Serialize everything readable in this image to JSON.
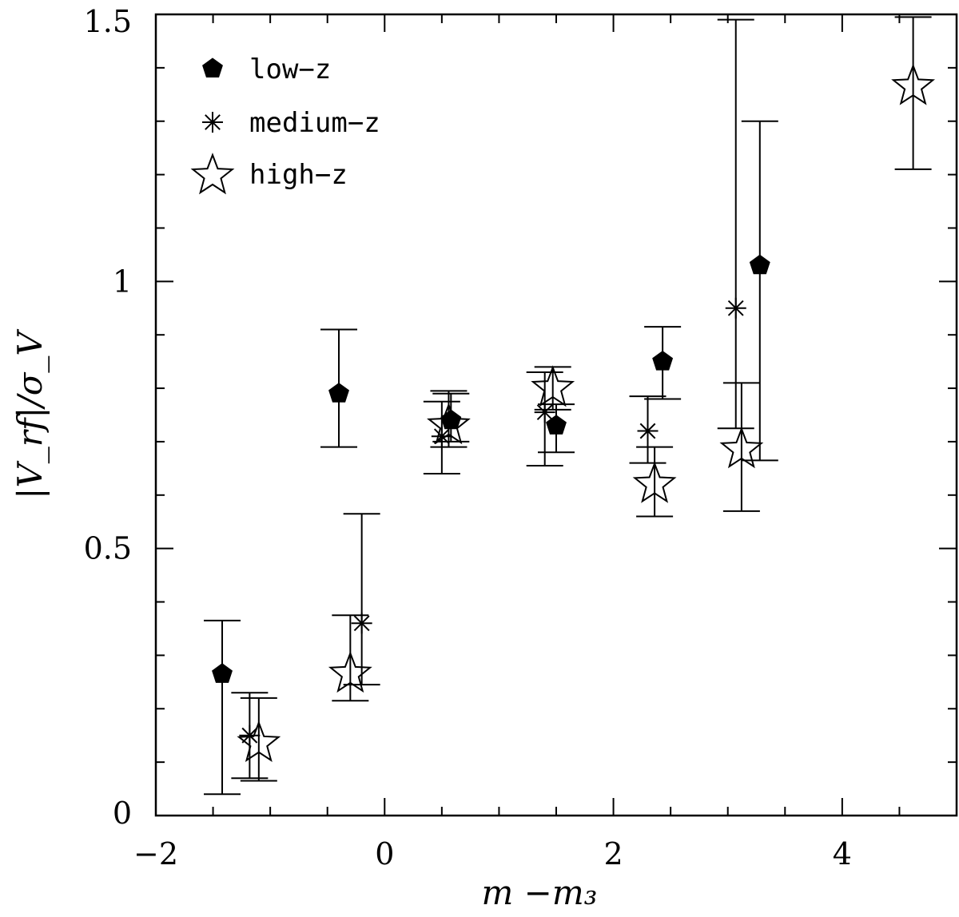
{
  "chart_data": {
    "type": "scatter",
    "xlabel": "m −m₃",
    "ylabel": "|V_rf|/σ_V",
    "xlim": [
      -2,
      5
    ],
    "ylim": [
      0,
      1.5
    ],
    "x_ticks": [
      -2,
      0,
      2,
      4
    ],
    "x_tick_labels": [
      "−2",
      "0",
      "2",
      "4"
    ],
    "y_ticks": [
      0,
      0.5,
      1,
      1.5
    ],
    "y_tick_labels": [
      "0",
      "0.5",
      "1",
      "1.5"
    ],
    "legend_position": "top-left",
    "series": [
      {
        "name": "low−z",
        "marker": "pentagon-filled",
        "points": [
          {
            "x": -1.42,
            "y": 0.265,
            "ylo": 0.04,
            "yhi": 0.365
          },
          {
            "x": -0.4,
            "y": 0.79,
            "ylo": 0.69,
            "yhi": 0.91
          },
          {
            "x": 0.58,
            "y": 0.74,
            "ylo": 0.7,
            "yhi": 0.79
          },
          {
            "x": 1.5,
            "y": 0.73,
            "ylo": 0.68,
            "yhi": 0.77
          },
          {
            "x": 2.43,
            "y": 0.85,
            "ylo": 0.78,
            "yhi": 0.915
          },
          {
            "x": 3.28,
            "y": 1.03,
            "ylo": 0.665,
            "yhi": 1.3
          }
        ]
      },
      {
        "name": "medium−z",
        "marker": "asterisk",
        "points": [
          {
            "x": -1.18,
            "y": 0.15,
            "ylo": 0.07,
            "yhi": 0.23
          },
          {
            "x": -0.2,
            "y": 0.36,
            "ylo": 0.245,
            "yhi": 0.565
          },
          {
            "x": 0.5,
            "y": 0.71,
            "ylo": 0.64,
            "yhi": 0.775
          },
          {
            "x": 1.4,
            "y": 0.755,
            "ylo": 0.655,
            "yhi": 0.83
          },
          {
            "x": 2.3,
            "y": 0.72,
            "ylo": 0.66,
            "yhi": 0.785
          },
          {
            "x": 3.07,
            "y": 0.95,
            "ylo": 0.725,
            "yhi": 1.49
          }
        ]
      },
      {
        "name": "high−z",
        "marker": "star-open",
        "points": [
          {
            "x": -1.1,
            "y": 0.135,
            "ylo": 0.065,
            "yhi": 0.22
          },
          {
            "x": -0.3,
            "y": 0.265,
            "ylo": 0.215,
            "yhi": 0.375
          },
          {
            "x": 0.56,
            "y": 0.73,
            "ylo": 0.69,
            "yhi": 0.795
          },
          {
            "x": 1.47,
            "y": 0.8,
            "ylo": 0.76,
            "yhi": 0.84
          },
          {
            "x": 2.36,
            "y": 0.62,
            "ylo": 0.56,
            "yhi": 0.69
          },
          {
            "x": 3.12,
            "y": 0.685,
            "ylo": 0.57,
            "yhi": 0.81
          },
          {
            "x": 4.62,
            "y": 1.365,
            "ylo": 1.21,
            "yhi": 1.495
          }
        ]
      }
    ]
  }
}
